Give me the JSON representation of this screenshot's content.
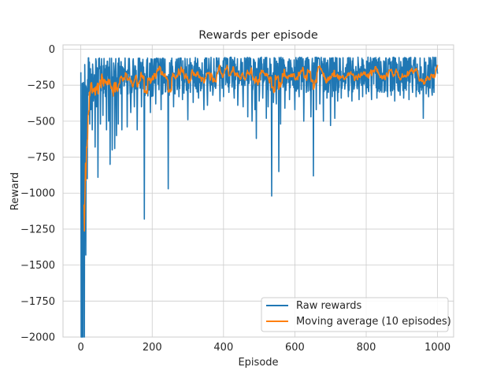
{
  "chart_data": {
    "type": "line",
    "title": "Rewards per episode",
    "xlabel": "Episode",
    "ylabel": "Reward",
    "xlim": [
      -50,
      1045
    ],
    "ylim": [
      -2000,
      30
    ],
    "xticks": [
      0,
      200,
      400,
      600,
      800,
      1000
    ],
    "yticks": [
      0,
      -250,
      -500,
      -750,
      -1000,
      -1250,
      -1500,
      -1750,
      -2000
    ],
    "grid": true,
    "legend_position": "lower-right",
    "episodes": 1000,
    "series": [
      {
        "name": "Raw rewards",
        "color": "#1f77b4",
        "anchor_points": [
          [
            0,
            -160
          ],
          [
            1,
            -2000
          ],
          [
            2,
            -1400
          ],
          [
            3,
            -2000
          ],
          [
            5,
            -1100
          ],
          [
            6,
            -2000
          ],
          [
            8,
            -1420
          ],
          [
            10,
            -2000
          ],
          [
            12,
            -330
          ],
          [
            14,
            -1430
          ],
          [
            16,
            -520
          ],
          [
            18,
            -900
          ],
          [
            20,
            -320
          ],
          [
            22,
            -60
          ],
          [
            25,
            -520
          ],
          [
            28,
            -420
          ],
          [
            32,
            -560
          ],
          [
            35,
            -360
          ],
          [
            40,
            -680
          ],
          [
            44,
            -400
          ],
          [
            48,
            -890
          ],
          [
            55,
            -520
          ],
          [
            62,
            -460
          ],
          [
            72,
            -560
          ],
          [
            78,
            -500
          ],
          [
            82,
            -800
          ],
          [
            88,
            -700
          ],
          [
            95,
            -690
          ],
          [
            100,
            -600
          ],
          [
            105,
            -520
          ],
          [
            115,
            -560
          ],
          [
            130,
            -540
          ],
          [
            140,
            -440
          ],
          [
            150,
            -400
          ],
          [
            158,
            -560
          ],
          [
            170,
            -400
          ],
          [
            178,
            -1180
          ],
          [
            195,
            -440
          ],
          [
            210,
            -380
          ],
          [
            225,
            -420
          ],
          [
            245,
            -970
          ],
          [
            260,
            -400
          ],
          [
            275,
            -330
          ],
          [
            285,
            -350
          ],
          [
            300,
            -490
          ],
          [
            315,
            -370
          ],
          [
            330,
            -340
          ],
          [
            345,
            -420
          ],
          [
            355,
            -390
          ],
          [
            370,
            -320
          ],
          [
            390,
            -360
          ],
          [
            400,
            -330
          ],
          [
            415,
            -300
          ],
          [
            430,
            -340
          ],
          [
            440,
            -390
          ],
          [
            455,
            -400
          ],
          [
            468,
            -470
          ],
          [
            480,
            -500
          ],
          [
            488,
            -420
          ],
          [
            492,
            -620
          ],
          [
            500,
            -360
          ],
          [
            510,
            -340
          ],
          [
            520,
            -480
          ],
          [
            525,
            -400
          ],
          [
            535,
            -1020
          ],
          [
            540,
            -370
          ],
          [
            548,
            -380
          ],
          [
            555,
            -850
          ],
          [
            560,
            -520
          ],
          [
            572,
            -410
          ],
          [
            585,
            -350
          ],
          [
            600,
            -420
          ],
          [
            612,
            -330
          ],
          [
            625,
            -500
          ],
          [
            632,
            -300
          ],
          [
            645,
            -470
          ],
          [
            652,
            -880
          ],
          [
            660,
            -420
          ],
          [
            670,
            -380
          ],
          [
            680,
            -500
          ],
          [
            690,
            -340
          ],
          [
            700,
            -530
          ],
          [
            705,
            -330
          ],
          [
            712,
            -480
          ],
          [
            720,
            -360
          ],
          [
            730,
            -340
          ],
          [
            750,
            -330
          ],
          [
            760,
            -360
          ],
          [
            780,
            -350
          ],
          [
            790,
            -330
          ],
          [
            800,
            -310
          ],
          [
            815,
            -350
          ],
          [
            830,
            -340
          ],
          [
            850,
            -300
          ],
          [
            860,
            -330
          ],
          [
            870,
            -320
          ],
          [
            880,
            -360
          ],
          [
            895,
            -320
          ],
          [
            905,
            -340
          ],
          [
            920,
            -350
          ],
          [
            930,
            -300
          ],
          [
            940,
            -330
          ],
          [
            950,
            -310
          ],
          [
            960,
            -480
          ],
          [
            968,
            -310
          ],
          [
            975,
            -330
          ],
          [
            985,
            -320
          ],
          [
            990,
            -300
          ],
          [
            1000,
            -170
          ]
        ]
      },
      {
        "name": "Moving average (10 episodes)",
        "color": "#ff7f0e",
        "window": 10
      }
    ]
  }
}
